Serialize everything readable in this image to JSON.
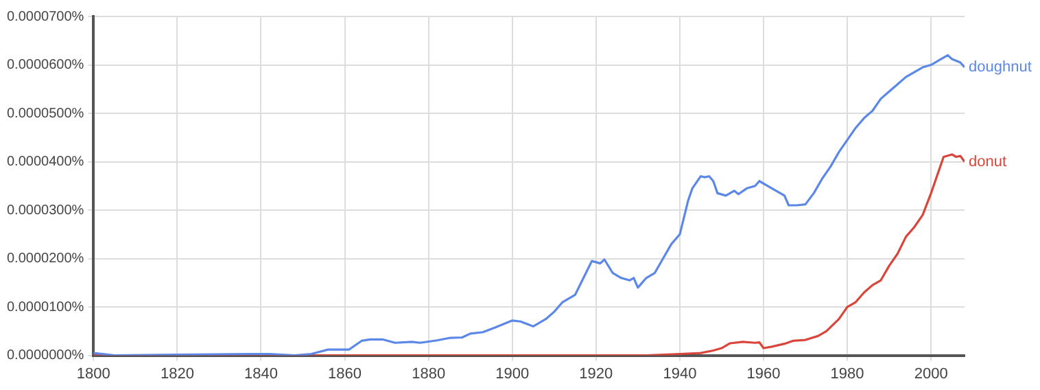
{
  "chart_data": {
    "type": "line",
    "xlim": [
      1800,
      2008
    ],
    "xticks": [
      1800,
      1820,
      1840,
      1860,
      1880,
      1900,
      1920,
      1940,
      1960,
      1980,
      2000
    ],
    "ylim": [
      0,
      7e-05
    ],
    "yticks": [
      {
        "value": 0,
        "label": "0.0000000%"
      },
      {
        "value": 1e-05,
        "label": "0.0000100%"
      },
      {
        "value": 2e-05,
        "label": "0.0000200%"
      },
      {
        "value": 3e-05,
        "label": "0.0000300%"
      },
      {
        "value": 4e-05,
        "label": "0.0000400%"
      },
      {
        "value": 5e-05,
        "label": "0.0000500%"
      },
      {
        "value": 6e-05,
        "label": "0.0000600%"
      },
      {
        "value": 7e-05,
        "label": "0.0000700%"
      }
    ],
    "grid": true,
    "legend": false,
    "marker": "none",
    "line_style": "solid",
    "series": [
      {
        "name": "doughnut",
        "color": "#5b87e8",
        "x": [
          1800,
          1805,
          1838,
          1842,
          1848,
          1852,
          1856,
          1861,
          1864,
          1866,
          1869,
          1872,
          1876,
          1878,
          1882,
          1885,
          1888,
          1890,
          1893,
          1896,
          1900,
          1902,
          1905,
          1908,
          1910,
          1912,
          1915,
          1917,
          1919,
          1921,
          1922,
          1924,
          1926,
          1928,
          1929,
          1930,
          1932,
          1934,
          1936,
          1938,
          1940,
          1942,
          1943,
          1945,
          1946,
          1947,
          1948,
          1949,
          1951,
          1953,
          1954,
          1956,
          1958,
          1959,
          1961,
          1962,
          1963,
          1965,
          1966,
          1968,
          1970,
          1972,
          1974,
          1976,
          1978,
          1980,
          1982,
          1984,
          1986,
          1988,
          1990,
          1992,
          1994,
          1996,
          1998,
          2000,
          2002,
          2004,
          2005,
          2007,
          2008
        ],
        "values": [
          5e-07,
          0,
          3e-07,
          3e-07,
          0,
          3e-07,
          1.2e-06,
          1.2e-06,
          3e-06,
          3.3e-06,
          3.3e-06,
          2.6e-06,
          2.8e-06,
          2.6e-06,
          3.1e-06,
          3.6e-06,
          3.7e-06,
          4.5e-06,
          4.8e-06,
          5.8e-06,
          7.2e-06,
          7e-06,
          6e-06,
          7.5e-06,
          9e-06,
          1.1e-05,
          1.25e-05,
          1.6e-05,
          1.95e-05,
          1.9e-05,
          1.98e-05,
          1.7e-05,
          1.6e-05,
          1.55e-05,
          1.6e-05,
          1.4e-05,
          1.6e-05,
          1.7e-05,
          2e-05,
          2.3e-05,
          2.5e-05,
          3.2e-05,
          3.45e-05,
          3.7e-05,
          3.68e-05,
          3.7e-05,
          3.6e-05,
          3.35e-05,
          3.3e-05,
          3.4e-05,
          3.33e-05,
          3.45e-05,
          3.5e-05,
          3.6e-05,
          3.5e-05,
          3.45e-05,
          3.4e-05,
          3.3e-05,
          3.1e-05,
          3.1e-05,
          3.12e-05,
          3.35e-05,
          3.65e-05,
          3.9e-05,
          4.2e-05,
          4.45e-05,
          4.7e-05,
          4.9e-05,
          5.05e-05,
          5.3e-05,
          5.45e-05,
          5.6e-05,
          5.75e-05,
          5.85e-05,
          5.95e-05,
          6e-05,
          6.1e-05,
          6.2e-05,
          6.12e-05,
          6.05e-05,
          5.95e-05
        ]
      },
      {
        "name": "donut",
        "color": "#d9453a",
        "x": [
          1800,
          1932,
          1940,
          1945,
          1948,
          1950,
          1952,
          1955,
          1958,
          1959,
          1960,
          1962,
          1965,
          1967,
          1970,
          1973,
          1975,
          1978,
          1980,
          1982,
          1984,
          1986,
          1988,
          1990,
          1992,
          1994,
          1996,
          1998,
          2000,
          2002,
          2003,
          2005,
          2006,
          2007,
          2008
        ],
        "values": [
          0,
          0,
          3e-07,
          5e-07,
          1e-06,
          1.5e-06,
          2.5e-06,
          2.8e-06,
          2.6e-06,
          2.7e-06,
          1.5e-06,
          1.8e-06,
          2.4e-06,
          3e-06,
          3.2e-06,
          4e-06,
          5e-06,
          7.5e-06,
          1e-05,
          1.1e-05,
          1.3e-05,
          1.45e-05,
          1.55e-05,
          1.85e-05,
          2.1e-05,
          2.45e-05,
          2.65e-05,
          2.9e-05,
          3.35e-05,
          3.85e-05,
          4.1e-05,
          4.15e-05,
          4.1e-05,
          4.12e-05,
          4e-05
        ]
      }
    ]
  }
}
